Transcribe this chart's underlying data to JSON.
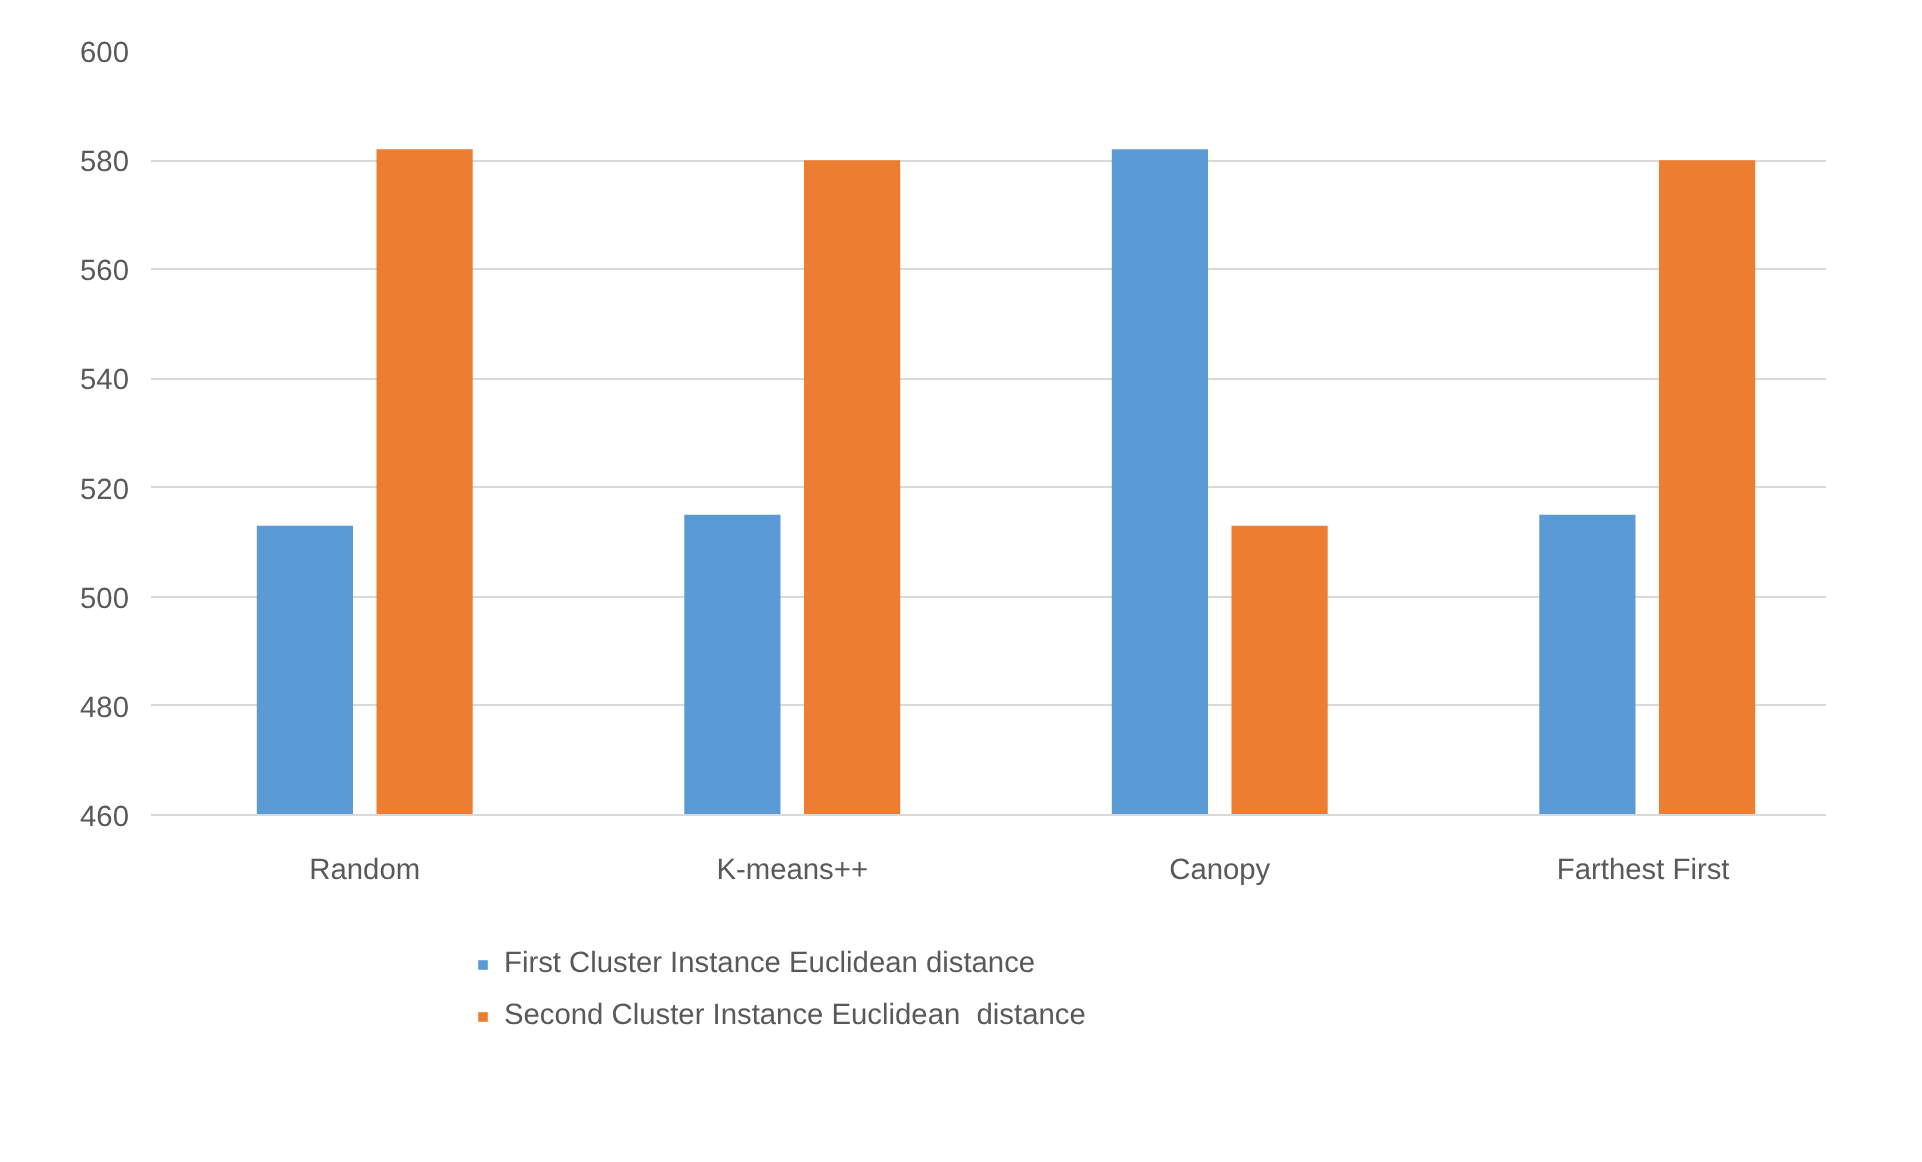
{
  "chart_data": {
    "type": "bar",
    "categories": [
      "Random",
      "K-means++",
      "Canopy",
      "Farthest  First"
    ],
    "series": [
      {
        "name": "First Cluster Instance Euclidean distance",
        "color": "#5b9bd5",
        "values": [
          513,
          515,
          582,
          515
        ]
      },
      {
        "name": "Second Cluster Instance Euclidean  distance",
        "color": "#ed7d31",
        "values": [
          582,
          580,
          513,
          580
        ]
      }
    ],
    "ylim": [
      460,
      600
    ],
    "yticks": [
      460,
      480,
      500,
      520,
      540,
      560,
      580,
      600
    ],
    "grid": "y",
    "legend": "bottom"
  }
}
